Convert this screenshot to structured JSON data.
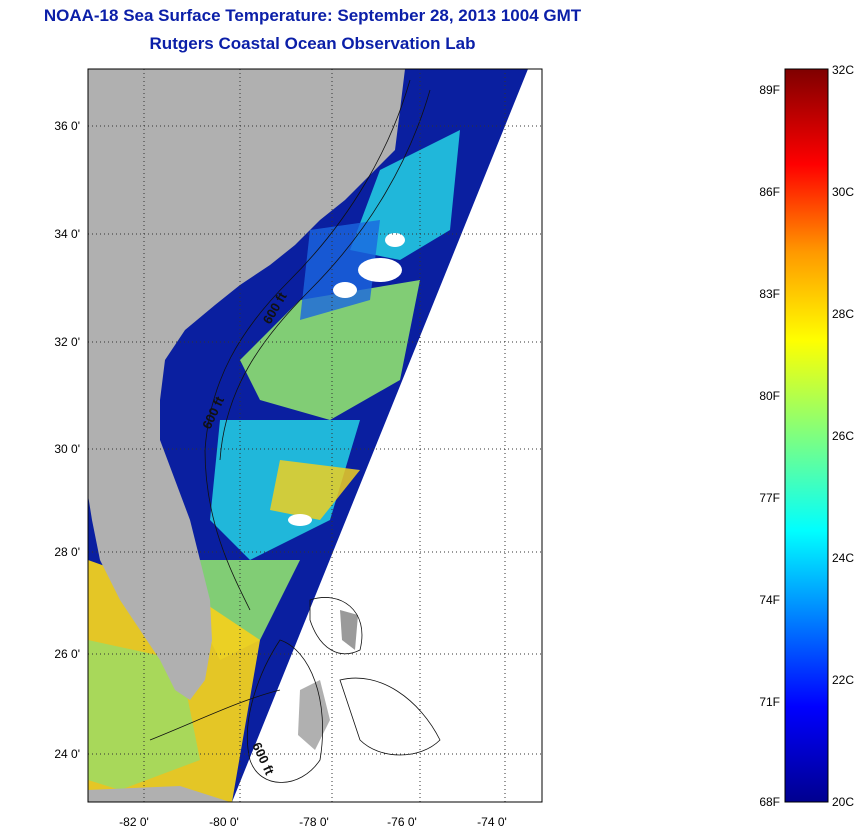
{
  "header": {
    "title": "NOAA-18 Sea Surface Temperature:  September 28, 2013 1004 GMT",
    "subtitle": "Rutgers Coastal Ocean Observation Lab"
  },
  "map": {
    "lat_labels": [
      "36 0'",
      "34 0'",
      "32 0'",
      "30 0'",
      "28 0'",
      "26 0'",
      "24 0'"
    ],
    "lon_labels": [
      "-82 0'",
      "-80 0'",
      "-78 0'",
      "-76 0'",
      "-74 0'"
    ],
    "contour_labels": [
      "600 ft",
      "600 ft",
      "600 ft"
    ],
    "colors": {
      "land": "#b0b0b0",
      "cold": "#0a1fa0",
      "cool": "#1a66e0",
      "mid": "#22c8e0",
      "warm": "#8ee070",
      "hot": "#f0d020",
      "no_data": "#ffffff"
    }
  },
  "colorbar": {
    "celsius_labels": [
      "32C",
      "30C",
      "28C",
      "26C",
      "24C",
      "22C",
      "20C"
    ],
    "fahrenheit_labels": [
      "89F",
      "86F",
      "83F",
      "80F",
      "77F",
      "74F",
      "71F",
      "68F"
    ],
    "celsius_range": [
      20,
      32
    ]
  }
}
